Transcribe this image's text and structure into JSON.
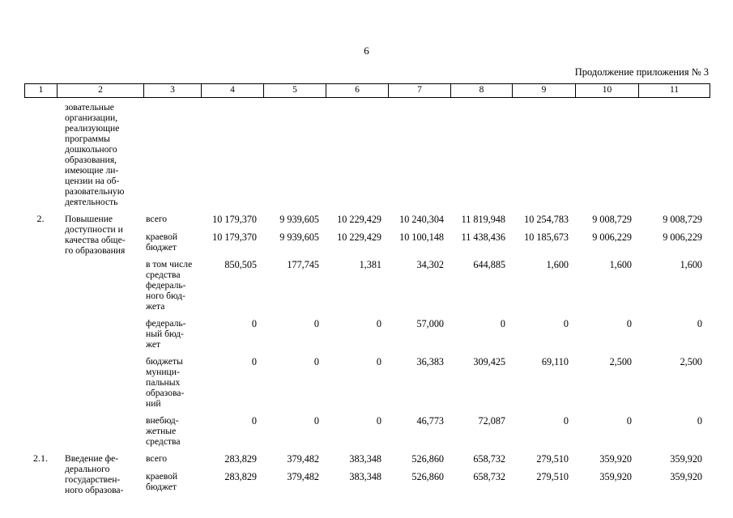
{
  "page": {
    "number": "6",
    "continuation": "Продолжение приложения № 3"
  },
  "table": {
    "header_cols": [
      "1",
      "2",
      "3",
      "4",
      "5",
      "6",
      "7",
      "8",
      "9",
      "10",
      "11"
    ],
    "rows": [
      {
        "num": "",
        "title": "зовательные\nорганизации,\nреализующие\nпрограммы\nдошкольного\nобразования,\nимеющие ли-\nцензии на об-\nразовательную\nдеятельность",
        "lines": []
      },
      {
        "num": "2.",
        "title": "Повышение\nдоступности и\nкачества обще-\nго образования",
        "lines": [
          {
            "label": "всего",
            "values": [
              "10 179,370",
              "9 939,605",
              "10 229,429",
              "10 240,304",
              "11 819,948",
              "10 254,783",
              "9 008,729",
              "9 008,729"
            ]
          },
          {
            "label": "краевой\nбюджет",
            "values": [
              "10 179,370",
              "9 939,605",
              "10 229,429",
              "10 100,148",
              "11 438,436",
              "10 185,673",
              "9 006,229",
              "9 006,229"
            ]
          },
          {
            "label": "в том числе\nсредства\nфедераль-\nного бюд-\nжета",
            "values": [
              "850,505",
              "177,745",
              "1,381",
              "34,302",
              "644,885",
              "1,600",
              "1,600",
              "1,600"
            ]
          },
          {
            "label": "федераль-\nный бюд-\nжет",
            "values": [
              "0",
              "0",
              "0",
              "57,000",
              "0",
              "0",
              "0",
              "0"
            ]
          },
          {
            "label": "бюджеты\nмуници-\nпальных\nобразова-\nний",
            "values": [
              "0",
              "0",
              "0",
              "36,383",
              "309,425",
              "69,110",
              "2,500",
              "2,500"
            ]
          },
          {
            "label": "внебюд-\nжетные\nсредства",
            "values": [
              "0",
              "0",
              "0",
              "46,773",
              "72,087",
              "0",
              "0",
              "0"
            ]
          }
        ]
      },
      {
        "num": "2.1.",
        "title": "Введение фе-\nдерального\nгосударствен-\nного образова-",
        "lines": [
          {
            "label": "всего",
            "values": [
              "283,829",
              "379,482",
              "383,348",
              "526,860",
              "658,732",
              "279,510",
              "359,920",
              "359,920"
            ]
          },
          {
            "label": "краевой\nбюджет",
            "values": [
              "283,829",
              "379,482",
              "383,348",
              "526,860",
              "658,732",
              "279,510",
              "359,920",
              "359,920"
            ]
          }
        ]
      }
    ]
  }
}
